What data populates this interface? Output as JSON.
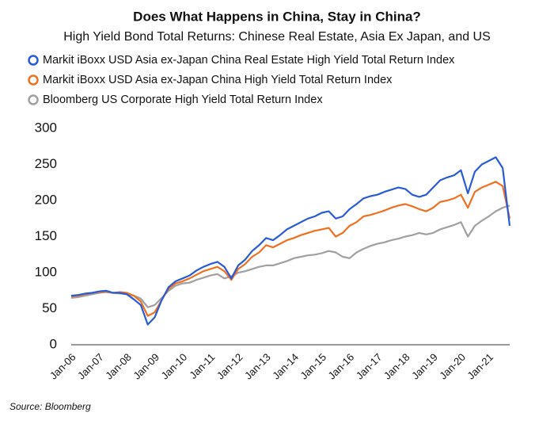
{
  "chart_data": {
    "type": "line",
    "title": "Does What Happens in China, Stay in China?",
    "subtitle": "High Yield Bond Total Returns: Chinese Real Estate, Asia Ex Japan, and US",
    "source": "Source: Bloomberg",
    "categories": [
      "Jan-06",
      null,
      null,
      null,
      "Jan-07",
      null,
      null,
      null,
      "Jan-08",
      null,
      null,
      null,
      "Jan-09",
      null,
      null,
      null,
      "Jan-10",
      null,
      null,
      null,
      "Jan-11",
      null,
      null,
      null,
      "Jan-12",
      null,
      null,
      null,
      "Jan-13",
      null,
      null,
      null,
      "Jan-14",
      null,
      null,
      null,
      "Jan-15",
      null,
      null,
      null,
      "Jan-16",
      null,
      null,
      null,
      "Jan-17",
      null,
      null,
      null,
      "Jan-18",
      null,
      null,
      null,
      "Jan-19",
      null,
      null,
      null,
      "Jan-20",
      null,
      null,
      null,
      "Jan-21",
      null,
      null,
      null
    ],
    "series": [
      {
        "name": "Markit iBoxx USD Asia ex-Japan China Real Estate High Yield Total Return Index",
        "color": "#2a5bd7",
        "values": [
          68,
          69,
          71,
          72,
          74,
          75,
          72,
          72,
          70,
          63,
          55,
          28,
          38,
          62,
          80,
          88,
          92,
          96,
          103,
          108,
          112,
          115,
          108,
          92,
          110,
          118,
          130,
          138,
          148,
          145,
          152,
          160,
          165,
          170,
          175,
          178,
          183,
          185,
          175,
          178,
          188,
          195,
          203,
          206,
          208,
          212,
          215,
          218,
          216,
          208,
          205,
          208,
          218,
          228,
          232,
          235,
          242,
          210,
          240,
          250,
          255,
          260,
          245,
          165
        ]
      },
      {
        "name": "Markit iBoxx USD Asia ex-Japan China High Yield Total Return Index",
        "color": "#f07020",
        "values": [
          67,
          68,
          70,
          72,
          73,
          74,
          72,
          73,
          72,
          68,
          60,
          40,
          45,
          62,
          78,
          85,
          88,
          92,
          97,
          102,
          105,
          108,
          102,
          90,
          105,
          112,
          122,
          128,
          138,
          135,
          140,
          145,
          148,
          152,
          155,
          158,
          160,
          162,
          150,
          155,
          165,
          170,
          178,
          180,
          183,
          186,
          190,
          193,
          195,
          192,
          188,
          185,
          190,
          198,
          200,
          203,
          208,
          190,
          212,
          218,
          222,
          226,
          220,
          175
        ]
      },
      {
        "name": "Bloomberg US Corporate High Yield Total Return Index",
        "color": "#a0a0a0",
        "values": [
          65,
          66,
          68,
          70,
          72,
          73,
          72,
          71,
          70,
          68,
          64,
          52,
          55,
          65,
          75,
          82,
          85,
          86,
          90,
          93,
          96,
          98,
          92,
          95,
          100,
          102,
          105,
          108,
          110,
          110,
          113,
          116,
          120,
          122,
          124,
          125,
          127,
          130,
          128,
          122,
          120,
          128,
          133,
          137,
          140,
          142,
          145,
          147,
          150,
          152,
          155,
          153,
          155,
          160,
          163,
          166,
          170,
          150,
          165,
          172,
          178,
          185,
          190,
          193
        ]
      }
    ],
    "ylim": [
      0,
      300
    ],
    "yticks": [
      0,
      50,
      100,
      150,
      200,
      250,
      300
    ],
    "grid": false
  }
}
